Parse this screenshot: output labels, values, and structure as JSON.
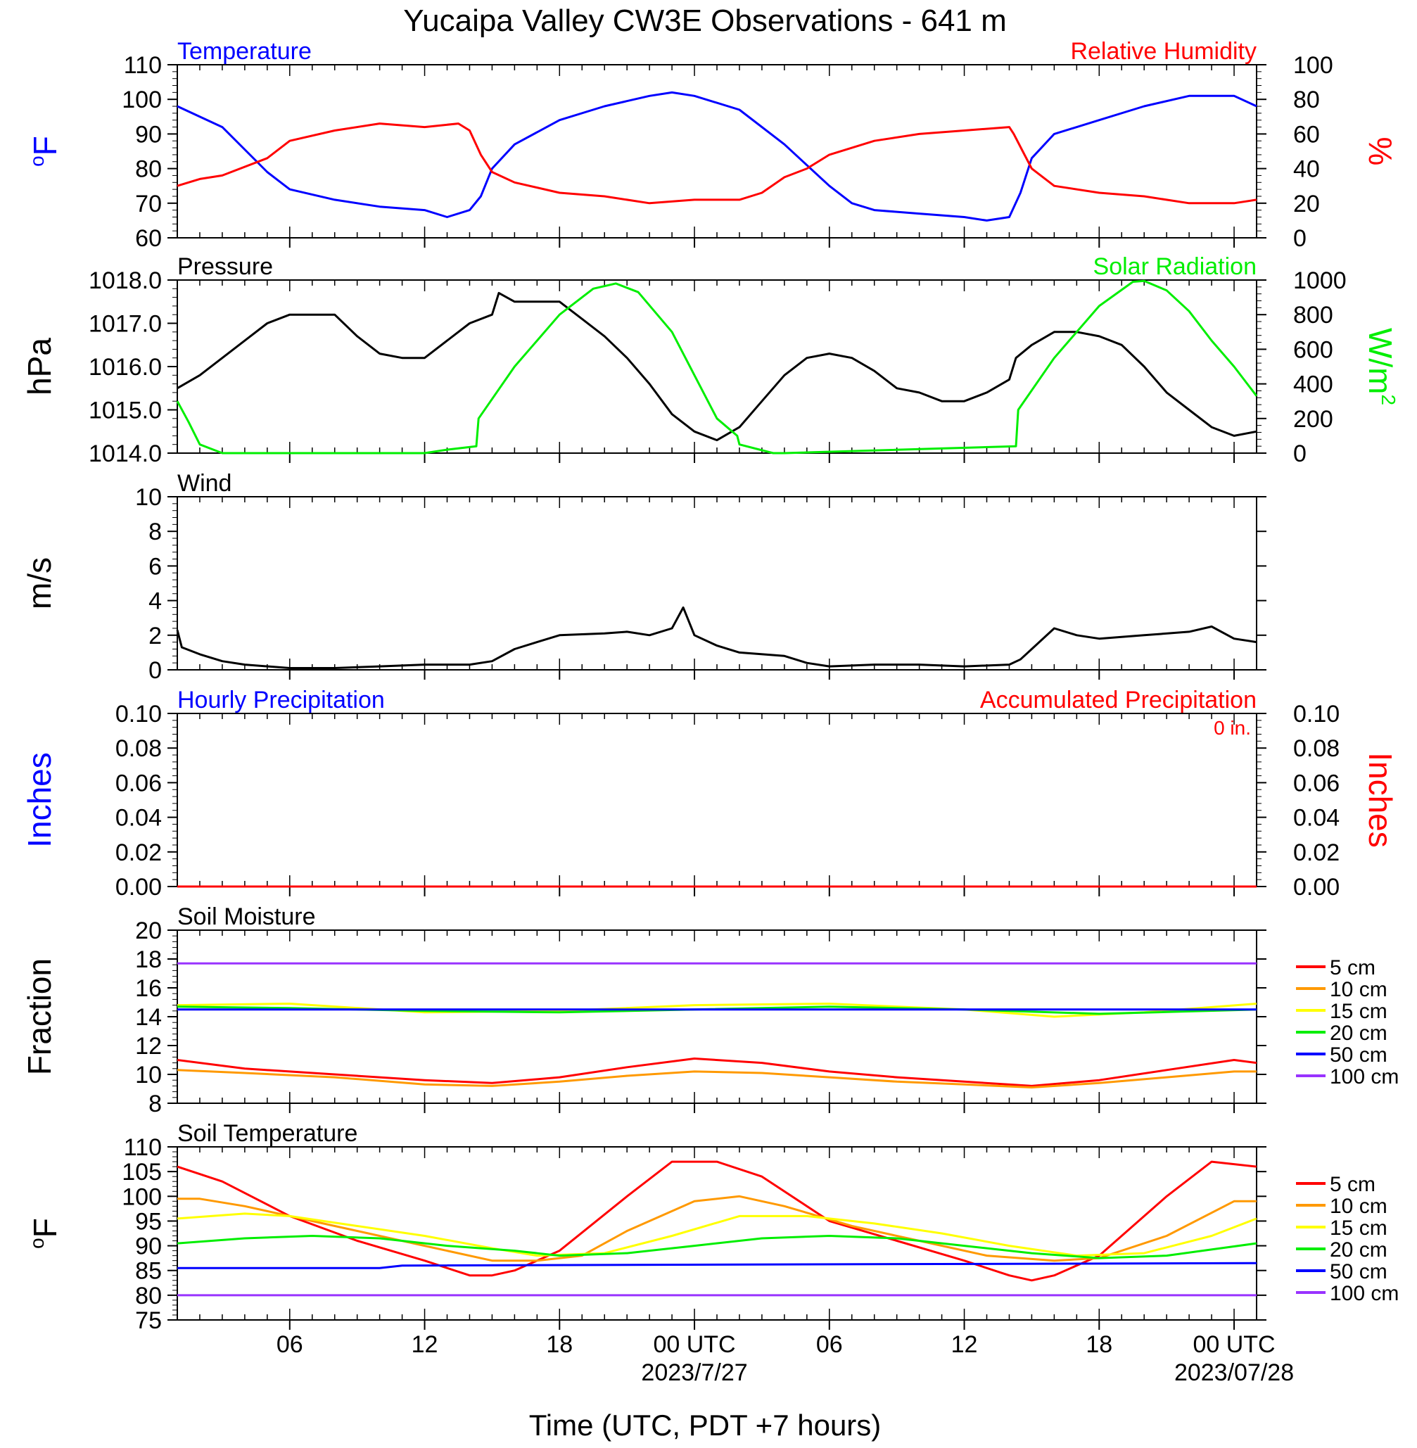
{
  "title": "Yucaipa Valley CW3E Observations - 641 m",
  "x_axis": {
    "title": "Time (UTC, PDT +7 hours)",
    "tick_labels": [
      "06",
      "12",
      "18",
      "00 UTC",
      "06",
      "12",
      "18",
      "00 UTC"
    ],
    "tick_hours": [
      6,
      12,
      18,
      24,
      30,
      36,
      42,
      48
    ],
    "date_labels": [
      {
        "text": "2023/7/27",
        "hour": 24
      },
      {
        "text": "2023/07/28",
        "hour": 48
      }
    ],
    "range_hours": [
      1,
      49
    ]
  },
  "colors": {
    "temperature": "#0000ff",
    "humidity": "#ff0000",
    "pressure": "#000000",
    "solar": "#00ee00",
    "wind": "#000000",
    "wind_barb": "#ff0000",
    "precip_hourly": "#0000ff",
    "precip_accum": "#ff0000",
    "depth_5cm": "#ff0000",
    "depth_10cm": "#ff9900",
    "depth_15cm": "#ffff00",
    "depth_20cm": "#00ee00",
    "depth_50cm": "#0000ff",
    "depth_100cm": "#9933ff"
  },
  "chart_data": [
    {
      "type": "line",
      "panel": "temperature_humidity",
      "left_title": "Temperature",
      "right_title": "Relative Humidity",
      "ylabel_left": "oF",
      "ylabel_right": "%",
      "ylim_left": [
        60,
        110
      ],
      "ylim_right": [
        0,
        100
      ],
      "yticks_left": [
        "110",
        "100",
        "90",
        "80",
        "70",
        "60"
      ],
      "yticks_right": [
        "100",
        "80",
        "60",
        "40",
        "20",
        "0"
      ],
      "series": [
        {
          "name": "Temperature",
          "axis": "left",
          "color": "#0000ff",
          "x": [
            1,
            3,
            5,
            6,
            8,
            10,
            12,
            13,
            14,
            14.5,
            15,
            16,
            18,
            20,
            22,
            23,
            24,
            26,
            28,
            29,
            30,
            31,
            32,
            34,
            36,
            37,
            38,
            38.5,
            39,
            40,
            42,
            44,
            46,
            48,
            49
          ],
          "y": [
            98,
            92,
            79,
            74,
            71,
            69,
            68,
            66,
            68,
            72,
            80,
            87,
            94,
            98,
            101,
            102,
            101,
            97,
            87,
            81,
            75,
            70,
            68,
            67,
            66,
            65,
            66,
            73,
            83,
            90,
            94,
            98,
            101,
            101,
            98
          ]
        },
        {
          "name": "Relative Humidity",
          "axis": "right",
          "color": "#ff0000",
          "x": [
            1,
            2,
            3,
            5,
            6,
            8,
            10,
            12,
            13.5,
            14,
            14.5,
            15,
            16,
            18,
            20,
            22,
            24,
            26,
            27,
            28,
            29,
            30,
            32,
            34,
            36,
            38,
            38.2,
            38.6,
            39,
            40,
            42,
            44,
            46,
            48,
            49
          ],
          "y": [
            30,
            34,
            36,
            46,
            56,
            62,
            66,
            64,
            66,
            62,
            48,
            38,
            32,
            26,
            24,
            20,
            22,
            22,
            26,
            35,
            40,
            48,
            56,
            60,
            62,
            64,
            60,
            50,
            40,
            30,
            26,
            24,
            20,
            20,
            22
          ]
        }
      ]
    },
    {
      "type": "line",
      "panel": "pressure_solar",
      "left_title": "Pressure",
      "right_title": "Solar Radiation",
      "ylabel_left": "hPa",
      "ylabel_right": "W/m",
      "ylabel_right_sup": "2",
      "ylim_left": [
        1014,
        1018
      ],
      "ylim_right": [
        0,
        1000
      ],
      "yticks_left": [
        "1018.0",
        "1017.0",
        "1016.0",
        "1015.0",
        "1014.0"
      ],
      "yticks_right": [
        "1000",
        "800",
        "600",
        "400",
        "200",
        "0"
      ],
      "series": [
        {
          "name": "Pressure",
          "axis": "left",
          "color": "#000000",
          "x": [
            1,
            2,
            4,
            5,
            6,
            8,
            9,
            10,
            11,
            12,
            13,
            14,
            15,
            15.3,
            16,
            18,
            19,
            20,
            21,
            22,
            23,
            24,
            25,
            26,
            27,
            28,
            29,
            30,
            31,
            32,
            33,
            34,
            35,
            36,
            37,
            38,
            38.3,
            39,
            40,
            41,
            42,
            43,
            44,
            45,
            46,
            47,
            48,
            49
          ],
          "y": [
            1015.5,
            1015.8,
            1016.6,
            1017.0,
            1017.2,
            1017.2,
            1016.7,
            1016.3,
            1016.2,
            1016.2,
            1016.6,
            1017.0,
            1017.2,
            1017.7,
            1017.5,
            1017.5,
            1017.1,
            1016.7,
            1016.2,
            1015.6,
            1014.9,
            1014.5,
            1014.3,
            1014.6,
            1015.2,
            1015.8,
            1016.2,
            1016.3,
            1016.2,
            1015.9,
            1015.5,
            1015.4,
            1015.2,
            1015.2,
            1015.4,
            1015.7,
            1016.2,
            1016.5,
            1016.8,
            1016.8,
            1016.7,
            1016.5,
            1016.0,
            1015.4,
            1015.0,
            1014.6,
            1014.4,
            1014.5
          ]
        },
        {
          "name": "Solar Radiation",
          "axis": "right",
          "color": "#00ee00",
          "x": [
            1,
            1.5,
            2,
            3,
            4,
            12,
            13,
            14.3,
            14.4,
            16,
            18,
            19.5,
            20.5,
            21.5,
            23,
            24,
            25,
            25.9,
            26,
            27.5,
            28,
            38.3,
            38.4,
            40,
            42,
            43.5,
            44,
            45,
            46,
            47,
            48,
            49
          ],
          "y": [
            300,
            180,
            50,
            0,
            0,
            0,
            20,
            40,
            200,
            500,
            800,
            950,
            980,
            930,
            700,
            450,
            200,
            100,
            50,
            0,
            0,
            40,
            250,
            550,
            850,
            990,
            995,
            940,
            820,
            650,
            500,
            330
          ]
        }
      ]
    },
    {
      "type": "line",
      "panel": "wind",
      "left_title": "Wind",
      "ylabel_left": "m/s",
      "ylim_left": [
        0,
        10
      ],
      "yticks_left": [
        "10",
        "8",
        "6",
        "4",
        "2",
        "0"
      ],
      "series": [
        {
          "name": "Wind",
          "axis": "left",
          "color": "#000000",
          "x": [
            1,
            1.2,
            2,
            3,
            4,
            6,
            8,
            10,
            12,
            14,
            15,
            16,
            17,
            18,
            20,
            21,
            22,
            23,
            23.5,
            24,
            25,
            26,
            28,
            29,
            30,
            32,
            34,
            36,
            38,
            38.5,
            39,
            40,
            41,
            42,
            44,
            46,
            47,
            48,
            49
          ],
          "y": [
            2.3,
            1.3,
            0.9,
            0.5,
            0.3,
            0.1,
            0.1,
            0.2,
            0.3,
            0.3,
            0.5,
            1.2,
            1.6,
            2.0,
            2.1,
            2.2,
            2.0,
            2.4,
            3.6,
            2.0,
            1.4,
            1.0,
            0.8,
            0.4,
            0.2,
            0.3,
            0.3,
            0.2,
            0.3,
            0.6,
            1.2,
            2.4,
            2.0,
            1.8,
            2.0,
            2.2,
            2.5,
            1.8,
            1.6
          ]
        }
      ]
    },
    {
      "type": "bar",
      "panel": "precipitation",
      "left_title": "Hourly Precipitation",
      "right_title": "Accumulated Precipitation",
      "total_text": "0 in.",
      "ylabel_left": "Inches",
      "ylabel_right": "Inches",
      "ylim_left": [
        0,
        0.1
      ],
      "ylim_right": [
        0,
        0.1
      ],
      "yticks_left": [
        "0.10",
        "0.08",
        "0.06",
        "0.04",
        "0.02",
        "0.00"
      ],
      "yticks_right": [
        "0.10",
        "0.08",
        "0.06",
        "0.04",
        "0.02",
        "0.00"
      ],
      "series": [
        {
          "name": "Hourly Precipitation",
          "axis": "left",
          "color": "#0000ff",
          "x": [
            1,
            49
          ],
          "y": [
            0,
            0
          ]
        },
        {
          "name": "Accumulated Precipitation",
          "axis": "right",
          "color": "#ff0000",
          "x": [
            1,
            49
          ],
          "y": [
            0,
            0
          ]
        }
      ]
    },
    {
      "type": "line",
      "panel": "soil_moisture",
      "left_title": "Soil Moisture",
      "ylabel_left": "Fraction",
      "ylim_left": [
        8,
        20
      ],
      "yticks_left": [
        "20",
        "18",
        "16",
        "14",
        "12",
        "10",
        "8"
      ],
      "series": [
        {
          "name": "5 cm",
          "color": "#ff0000",
          "x": [
            1,
            4,
            8,
            12,
            15,
            18,
            21,
            24,
            27,
            30,
            33,
            36,
            39,
            42,
            45,
            48,
            49
          ],
          "y": [
            11.0,
            10.4,
            10.0,
            9.6,
            9.4,
            9.8,
            10.5,
            11.1,
            10.8,
            10.2,
            9.8,
            9.5,
            9.2,
            9.6,
            10.3,
            11.0,
            10.8
          ]
        },
        {
          "name": "10 cm",
          "color": "#ff9900",
          "x": [
            1,
            4,
            8,
            12,
            15,
            18,
            21,
            24,
            27,
            30,
            33,
            36,
            39,
            42,
            45,
            48,
            49
          ],
          "y": [
            10.3,
            10.1,
            9.8,
            9.3,
            9.2,
            9.5,
            9.9,
            10.2,
            10.1,
            9.8,
            9.5,
            9.3,
            9.1,
            9.4,
            9.8,
            10.2,
            10.2
          ]
        },
        {
          "name": "15 cm",
          "color": "#ffff00",
          "x": [
            1,
            6,
            12,
            18,
            24,
            30,
            36,
            40,
            44,
            49
          ],
          "y": [
            14.8,
            14.9,
            14.3,
            14.4,
            14.8,
            14.9,
            14.5,
            14.0,
            14.3,
            14.9
          ]
        },
        {
          "name": "20 cm",
          "color": "#00ee00",
          "x": [
            1,
            6,
            12,
            18,
            24,
            30,
            36,
            42,
            49
          ],
          "y": [
            14.7,
            14.6,
            14.4,
            14.3,
            14.5,
            14.7,
            14.5,
            14.2,
            14.5
          ]
        },
        {
          "name": "50 cm",
          "color": "#0000ff",
          "x": [
            1,
            49
          ],
          "y": [
            14.5,
            14.5
          ]
        },
        {
          "name": "100 cm",
          "color": "#9933ff",
          "x": [
            1,
            49
          ],
          "y": [
            17.7,
            17.7
          ]
        }
      ],
      "legend": [
        "5 cm",
        "10 cm",
        "15 cm",
        "20 cm",
        "50 cm",
        "100 cm"
      ]
    },
    {
      "type": "line",
      "panel": "soil_temperature",
      "left_title": "Soil Temperature",
      "ylabel_left": "oF",
      "ylim_left": [
        75,
        110
      ],
      "yticks_left": [
        "110",
        "105",
        "100",
        "95",
        "90",
        "85",
        "80",
        "75"
      ],
      "series": [
        {
          "name": "5 cm",
          "color": "#ff0000",
          "x": [
            1,
            3,
            6,
            9,
            12,
            14,
            15,
            16,
            18,
            21,
            23,
            25,
            27,
            30,
            33,
            36,
            38,
            39,
            40,
            42,
            45,
            47,
            49
          ],
          "y": [
            106,
            103,
            96,
            91,
            87,
            84,
            84,
            85,
            89,
            100,
            107,
            107,
            104,
            95,
            91,
            87,
            84,
            83,
            84,
            88,
            100,
            107,
            106
          ]
        },
        {
          "name": "10 cm",
          "color": "#ff9900",
          "x": [
            1,
            2,
            4,
            6,
            9,
            12,
            15,
            17,
            19,
            21,
            24,
            26,
            28,
            31,
            34,
            37,
            40,
            42,
            45,
            48,
            49
          ],
          "y": [
            99.5,
            99.5,
            98,
            96,
            93,
            90,
            87,
            87,
            88,
            93,
            99,
            100,
            98,
            94,
            91,
            88,
            87,
            87.5,
            92,
            99,
            99
          ]
        },
        {
          "name": "15 cm",
          "color": "#ffff00",
          "x": [
            1,
            4,
            6,
            9,
            12,
            15,
            17,
            20,
            23,
            26,
            29,
            32,
            35,
            38,
            41,
            44,
            47,
            49
          ],
          "y": [
            95.5,
            96.5,
            96,
            94,
            92,
            89.5,
            88,
            88.5,
            92,
            96,
            96,
            94.5,
            92.5,
            90,
            88,
            88.5,
            92,
            95.5
          ]
        },
        {
          "name": "20 cm",
          "color": "#00ee00",
          "x": [
            1,
            4,
            7,
            10,
            13,
            16,
            18,
            21,
            24,
            27,
            30,
            33,
            36,
            39,
            42,
            45,
            49
          ],
          "y": [
            90.5,
            91.5,
            92,
            91.5,
            90,
            89,
            88,
            88.5,
            90,
            91.5,
            92,
            91.5,
            90,
            88.5,
            87.5,
            88,
            90.5
          ]
        },
        {
          "name": "50 cm",
          "color": "#0000ff",
          "x": [
            1,
            10,
            11,
            49
          ],
          "y": [
            85.5,
            85.5,
            86,
            86.5
          ]
        },
        {
          "name": "100 cm",
          "color": "#9933ff",
          "x": [
            1,
            49
          ],
          "y": [
            80,
            80
          ]
        }
      ],
      "legend": [
        "5 cm",
        "10 cm",
        "15 cm",
        "20 cm",
        "50 cm",
        "100 cm"
      ]
    }
  ]
}
